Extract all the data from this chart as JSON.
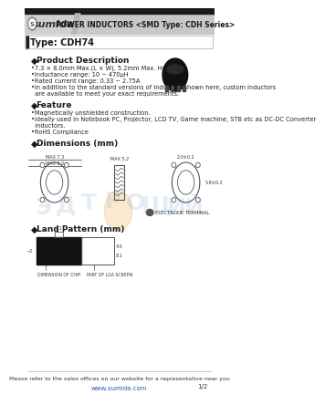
{
  "title_header": "POWER INDUCTORS <SMD Type: CDH Series>",
  "logo_text": "sumida",
  "type_label": "Type: CDH74",
  "section_product": "Product Description",
  "product_lines": [
    "•7.3 × 8.0mm Max.(L × W), 5.2mm Max. Height.",
    "•Inductance range: 10 ~ 470μH",
    "•Rated current range: 0.33 ~ 2.75A",
    "•In addition to the standard versions of inductors shown here, custom inductors",
    "  are available to meet your exact requirements."
  ],
  "section_feature": "Feature",
  "feature_lines": [
    "•Magnetically unshielded construction.",
    "•Ideally used in Notebook PC, Projector, LCD TV, Game machine, STB etc as DC-DC Converter",
    "  inductors.",
    "•RoHS Compliance"
  ],
  "section_dimensions": "Dimensions (mm)",
  "section_land": "Land Pattern (mm)",
  "footer_text": "Please refer to the sales offices on our website for a representative near you",
  "footer_url": "www.sumida.com",
  "page_num": "1/2",
  "bg_color": "#ffffff",
  "header_bg": "#c8c8c8",
  "header_dark": "#1a1a1a",
  "accent_color": "#e87820",
  "text_color": "#222222",
  "blue_watermark": "#a0c0e0"
}
